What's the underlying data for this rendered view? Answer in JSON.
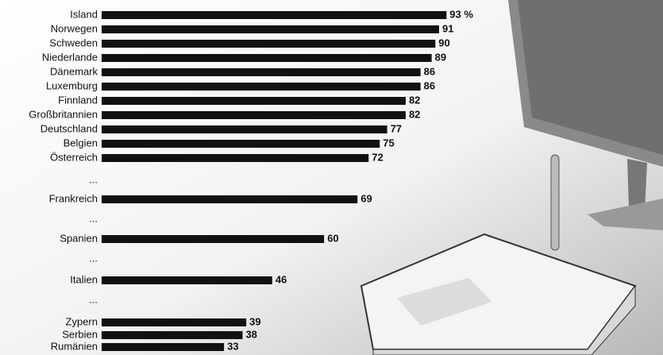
{
  "chart_data": {
    "type": "bar",
    "orientation": "horizontal",
    "color": "#111111",
    "categories": [
      "Island",
      "Norwegen",
      "Schweden",
      "Niederlande",
      "Dänemark",
      "Luxemburg",
      "Finnland",
      "Großbritannien",
      "Deutschland",
      "Belgien",
      "Österreich",
      "...",
      "Frankreich",
      "...",
      "Spanien",
      "...",
      "Italien",
      "...",
      "Zypern",
      "Serbien",
      "Rumänien"
    ],
    "values": [
      93,
      91,
      90,
      89,
      86,
      86,
      82,
      82,
      77,
      75,
      72,
      null,
      69,
      null,
      60,
      null,
      46,
      null,
      39,
      38,
      33
    ],
    "value_labels": [
      "93 %",
      "91",
      "90",
      "89",
      "86",
      "86",
      "82",
      "82",
      "77",
      "75",
      "72",
      null,
      "69",
      null,
      "60",
      null,
      "46",
      null,
      "39",
      "38",
      "33"
    ]
  }
}
